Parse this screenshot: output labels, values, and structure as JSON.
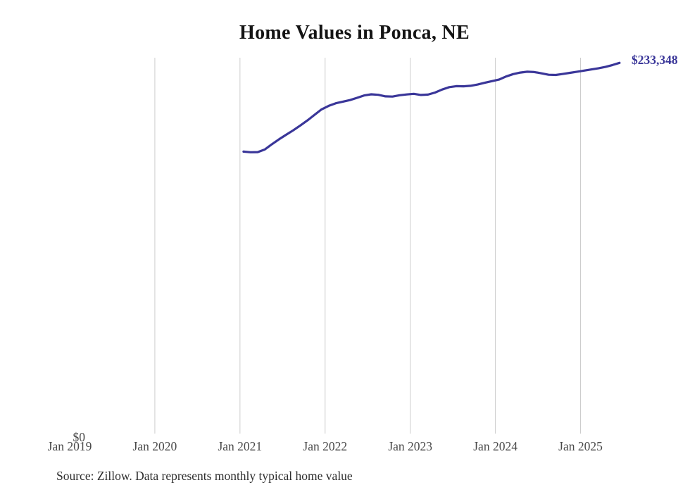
{
  "title": "Home Values in Ponca, NE",
  "latest_value_label": "$233,348",
  "y_axis": {
    "zero_label": "$0"
  },
  "x_axis": {
    "ticks": [
      "Jan 2019",
      "Jan 2020",
      "Jan 2021",
      "Jan 2022",
      "Jan 2023",
      "Jan 2024",
      "Jan 2025"
    ]
  },
  "source_note": "Source: Zillow. Data represents monthly typical home value",
  "colors": {
    "line": "#3a3699",
    "grid": "#cccccc",
    "title_text": "#141414",
    "axis_text": "#4a4a4a",
    "source_text": "#2f2f2f",
    "background": "#ffffff"
  },
  "chart_data": {
    "type": "line",
    "title": "Home Values in Ponca, NE",
    "xlabel": "",
    "ylabel": "",
    "ylim": [
      0,
      233348
    ],
    "grid": "vertical-gridlines-only",
    "legend": "none",
    "annotation_last_point": "$233,348",
    "x_tick_labels": [
      "Jan 2019",
      "Jan 2020",
      "Jan 2021",
      "Jan 2022",
      "Jan 2023",
      "Jan 2024",
      "Jan 2025"
    ],
    "y_tick_labels": [
      "$0"
    ],
    "frequency": "monthly",
    "x": [
      "2021-01",
      "2021-02",
      "2021-03",
      "2021-04",
      "2021-05",
      "2021-06",
      "2021-07",
      "2021-08",
      "2021-09",
      "2021-10",
      "2021-11",
      "2021-12",
      "2022-01",
      "2022-02",
      "2022-03",
      "2022-04",
      "2022-05",
      "2022-06",
      "2022-07",
      "2022-08",
      "2022-09",
      "2022-10",
      "2022-11",
      "2022-12",
      "2023-01",
      "2023-02",
      "2023-03",
      "2023-04",
      "2023-05",
      "2023-06",
      "2023-07",
      "2023-08",
      "2023-09",
      "2023-10",
      "2023-11",
      "2023-12",
      "2024-01",
      "2024-02",
      "2024-03",
      "2024-04",
      "2024-05",
      "2024-06",
      "2024-07",
      "2024-08",
      "2024-09",
      "2024-10",
      "2024-11",
      "2024-12",
      "2025-01",
      "2025-02",
      "2025-03",
      "2025-04",
      "2025-05",
      "2025-06"
    ],
    "values": [
      177900,
      177500,
      177600,
      179200,
      182500,
      185600,
      188400,
      191200,
      194200,
      197400,
      200800,
      204300,
      206500,
      208100,
      209100,
      210100,
      211500,
      213000,
      213700,
      213400,
      212400,
      212300,
      213100,
      213600,
      214000,
      213300,
      213500,
      214800,
      216700,
      218200,
      218800,
      218700,
      219000,
      219800,
      220900,
      221900,
      222900,
      224800,
      226300,
      227300,
      227800,
      227600,
      226800,
      225900,
      225800,
      226400,
      227100,
      227800,
      228500,
      229200,
      229900,
      230800,
      232000,
      233348
    ]
  }
}
